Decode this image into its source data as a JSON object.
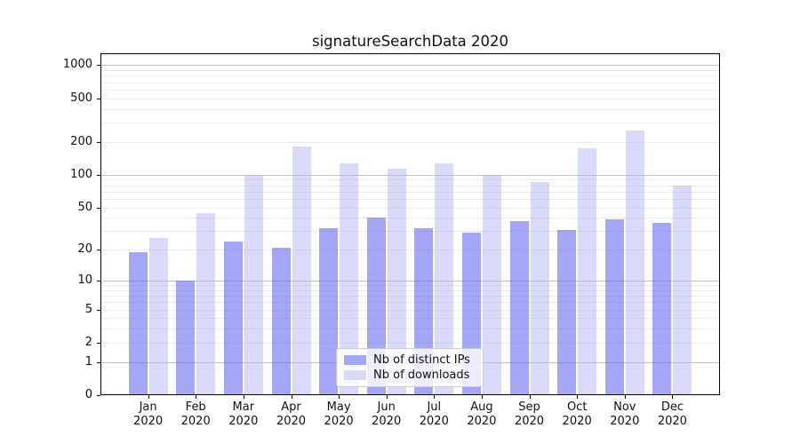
{
  "title": "signatureSearchData 2020",
  "colors": {
    "ips_bar": "rgba(93,93,240,0.55)",
    "downloads_bar": "rgba(180,180,245,0.5)",
    "ips_solid": "#a6a6f8",
    "downloads_solid": "#d9d9fa",
    "major_grid": "#c3c3c3",
    "minor_grid": "#ebebeb",
    "axis": "#000000"
  },
  "legend": {
    "items": [
      {
        "label": "Nb of distinct IPs",
        "color": "#a6a6f8"
      },
      {
        "label": "Nb of downloads",
        "color": "#d9d9fa"
      }
    ]
  },
  "y_axis": {
    "scale": "log1p",
    "tick_values": [
      0,
      1,
      2,
      5,
      10,
      20,
      50,
      100,
      200,
      500,
      1000
    ],
    "tick_labels": [
      "0",
      "1",
      "2",
      "5",
      "10",
      "20",
      "50",
      "100",
      "200",
      "500",
      "1000"
    ],
    "major_grid_values": [
      1,
      10,
      100,
      1000
    ]
  },
  "x_axis": {
    "months": [
      "Jan",
      "Feb",
      "Mar",
      "Apr",
      "May",
      "Jun",
      "Jul",
      "Aug",
      "Sep",
      "Oct",
      "Nov",
      "Dec"
    ],
    "year": "2020"
  },
  "chart_data": {
    "type": "bar",
    "title": "signatureSearchData 2020",
    "categories": [
      "Jan 2020",
      "Feb 2020",
      "Mar 2020",
      "Apr 2020",
      "May 2020",
      "Jun 2020",
      "Jul 2020",
      "Aug 2020",
      "Sep 2020",
      "Oct 2020",
      "Nov 2020",
      "Dec 2020"
    ],
    "series": [
      {
        "name": "Nb of distinct IPs",
        "values": [
          19,
          10,
          24,
          21,
          32,
          40,
          32,
          29,
          37,
          31,
          39,
          36
        ]
      },
      {
        "name": "Nb of downloads",
        "values": [
          26,
          44,
          97,
          182,
          127,
          113,
          127,
          99,
          85,
          173,
          253,
          80
        ]
      }
    ],
    "xlabel": "",
    "ylabel": "",
    "yscale": "log1p",
    "ylim": [
      0,
      1280
    ],
    "yticks": [
      0,
      1,
      2,
      5,
      10,
      20,
      50,
      100,
      200,
      500,
      1000
    ],
    "grid": true,
    "legend_position": "lower center"
  }
}
